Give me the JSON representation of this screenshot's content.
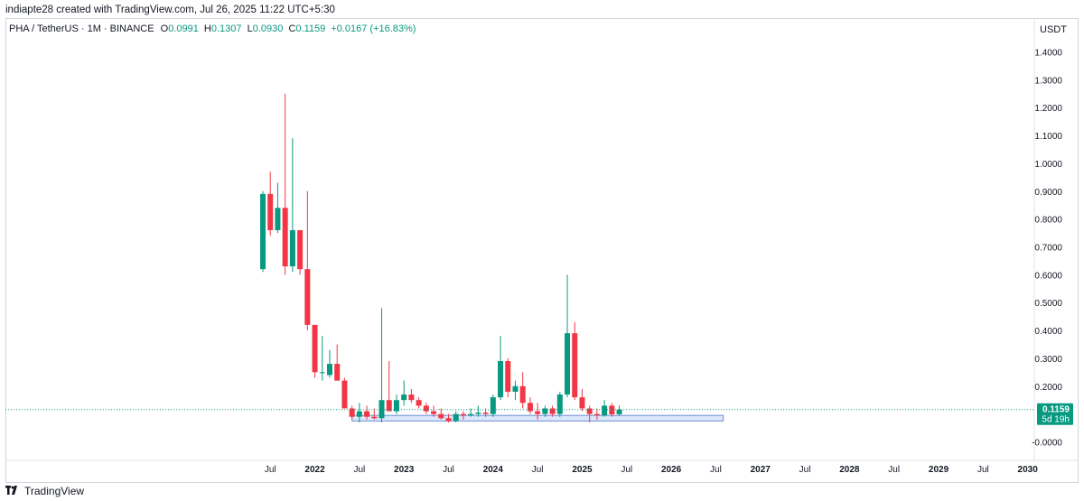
{
  "header": {
    "attribution": "indiapte28 created with TradingView.com, Jul 26, 2025 11:22 UTC+5:30"
  },
  "legend": {
    "symbol": "PHA / TetherUS · 1M · BINANCE",
    "o_label": "O",
    "o_value": "0.0991",
    "h_label": "H",
    "h_value": "0.1307",
    "l_label": "L",
    "l_value": "0.0930",
    "c_label": "C",
    "c_value": "0.1159",
    "change": "+0.0167 (+16.83%)"
  },
  "price_scale": {
    "currency": "USDT",
    "ticks": [
      "1.4000",
      "1.3000",
      "1.2000",
      "1.1000",
      "1.0000",
      "0.9000",
      "0.8000",
      "0.7000",
      "0.6000",
      "0.5000",
      "0.4000",
      "0.3000",
      "0.2000",
      "-0.0000"
    ],
    "last_price": "0.1159",
    "countdown": "5d 19h"
  },
  "time_axis": {
    "labels": [
      "Jul",
      "2022",
      "Jul",
      "2023",
      "Jul",
      "2024",
      "Jul",
      "2025",
      "Jul",
      "2026",
      "Jul",
      "2027",
      "Jul",
      "2028",
      "Jul",
      "2029",
      "Jul",
      "2030"
    ]
  },
  "footer": {
    "brand": "TradingView"
  },
  "colors": {
    "up": "#089981",
    "down": "#f23645",
    "last_price_line": "#089981",
    "zone_fill": "#dbe7fb",
    "zone_border": "#6f8fcf"
  },
  "chart_data": {
    "type": "candlestick",
    "title": "PHA / TetherUS · 1M · BINANCE",
    "ylabel": "USDT",
    "ylim": [
      -0.06,
      1.48
    ],
    "x_start": "2021-06",
    "interval": "1M",
    "candles": [
      {
        "o": 0.62,
        "h": 0.9,
        "l": 0.61,
        "c": 0.89
      },
      {
        "o": 0.89,
        "h": 0.97,
        "l": 0.74,
        "c": 0.76
      },
      {
        "o": 0.76,
        "h": 0.93,
        "l": 0.75,
        "c": 0.84
      },
      {
        "o": 0.84,
        "h": 1.25,
        "l": 0.6,
        "c": 0.63
      },
      {
        "o": 0.63,
        "h": 1.09,
        "l": 0.61,
        "c": 0.76
      },
      {
        "o": 0.76,
        "h": 0.76,
        "l": 0.6,
        "c": 0.62
      },
      {
        "o": 0.62,
        "h": 0.9,
        "l": 0.4,
        "c": 0.42
      },
      {
        "o": 0.42,
        "h": 0.42,
        "l": 0.23,
        "c": 0.25
      },
      {
        "o": 0.25,
        "h": 0.38,
        "l": 0.22,
        "c": 0.25
      },
      {
        "o": 0.24,
        "h": 0.33,
        "l": 0.23,
        "c": 0.28
      },
      {
        "o": 0.28,
        "h": 0.35,
        "l": 0.22,
        "c": 0.22
      },
      {
        "o": 0.22,
        "h": 0.23,
        "l": 0.12,
        "c": 0.12
      },
      {
        "o": 0.12,
        "h": 0.13,
        "l": 0.08,
        "c": 0.09
      },
      {
        "o": 0.09,
        "h": 0.14,
        "l": 0.07,
        "c": 0.11
      },
      {
        "o": 0.11,
        "h": 0.13,
        "l": 0.08,
        "c": 0.09
      },
      {
        "o": 0.09,
        "h": 0.12,
        "l": 0.08,
        "c": 0.085
      },
      {
        "o": 0.085,
        "h": 0.48,
        "l": 0.07,
        "c": 0.15
      },
      {
        "o": 0.15,
        "h": 0.29,
        "l": 0.11,
        "c": 0.11
      },
      {
        "o": 0.11,
        "h": 0.17,
        "l": 0.1,
        "c": 0.15
      },
      {
        "o": 0.15,
        "h": 0.22,
        "l": 0.13,
        "c": 0.17
      },
      {
        "o": 0.17,
        "h": 0.19,
        "l": 0.14,
        "c": 0.15
      },
      {
        "o": 0.15,
        "h": 0.16,
        "l": 0.12,
        "c": 0.13
      },
      {
        "o": 0.13,
        "h": 0.14,
        "l": 0.1,
        "c": 0.11
      },
      {
        "o": 0.11,
        "h": 0.13,
        "l": 0.09,
        "c": 0.1
      },
      {
        "o": 0.1,
        "h": 0.12,
        "l": 0.08,
        "c": 0.085
      },
      {
        "o": 0.085,
        "h": 0.1,
        "l": 0.07,
        "c": 0.075
      },
      {
        "o": 0.075,
        "h": 0.11,
        "l": 0.07,
        "c": 0.1
      },
      {
        "o": 0.1,
        "h": 0.11,
        "l": 0.08,
        "c": 0.095
      },
      {
        "o": 0.095,
        "h": 0.12,
        "l": 0.09,
        "c": 0.1
      },
      {
        "o": 0.1,
        "h": 0.13,
        "l": 0.09,
        "c": 0.105
      },
      {
        "o": 0.105,
        "h": 0.12,
        "l": 0.09,
        "c": 0.1
      },
      {
        "o": 0.1,
        "h": 0.17,
        "l": 0.09,
        "c": 0.16
      },
      {
        "o": 0.16,
        "h": 0.38,
        "l": 0.15,
        "c": 0.29
      },
      {
        "o": 0.29,
        "h": 0.3,
        "l": 0.16,
        "c": 0.18
      },
      {
        "o": 0.18,
        "h": 0.22,
        "l": 0.15,
        "c": 0.2
      },
      {
        "o": 0.2,
        "h": 0.25,
        "l": 0.12,
        "c": 0.14
      },
      {
        "o": 0.14,
        "h": 0.16,
        "l": 0.1,
        "c": 0.11
      },
      {
        "o": 0.11,
        "h": 0.14,
        "l": 0.08,
        "c": 0.1
      },
      {
        "o": 0.1,
        "h": 0.13,
        "l": 0.09,
        "c": 0.12
      },
      {
        "o": 0.12,
        "h": 0.13,
        "l": 0.09,
        "c": 0.1
      },
      {
        "o": 0.1,
        "h": 0.18,
        "l": 0.09,
        "c": 0.17
      },
      {
        "o": 0.17,
        "h": 0.6,
        "l": 0.16,
        "c": 0.39
      },
      {
        "o": 0.39,
        "h": 0.43,
        "l": 0.15,
        "c": 0.16
      },
      {
        "o": 0.16,
        "h": 0.19,
        "l": 0.11,
        "c": 0.12
      },
      {
        "o": 0.12,
        "h": 0.13,
        "l": 0.07,
        "c": 0.1
      },
      {
        "o": 0.1,
        "h": 0.12,
        "l": 0.08,
        "c": 0.095
      },
      {
        "o": 0.095,
        "h": 0.15,
        "l": 0.09,
        "c": 0.13
      },
      {
        "o": 0.13,
        "h": 0.14,
        "l": 0.09,
        "c": 0.099
      },
      {
        "o": 0.0991,
        "h": 0.1307,
        "l": 0.093,
        "c": 0.1159
      }
    ],
    "support_zone": {
      "from": "2022-06",
      "to": "2026-08",
      "low": 0.075,
      "high": 0.095
    },
    "last_price": 0.1159,
    "grid": false
  }
}
